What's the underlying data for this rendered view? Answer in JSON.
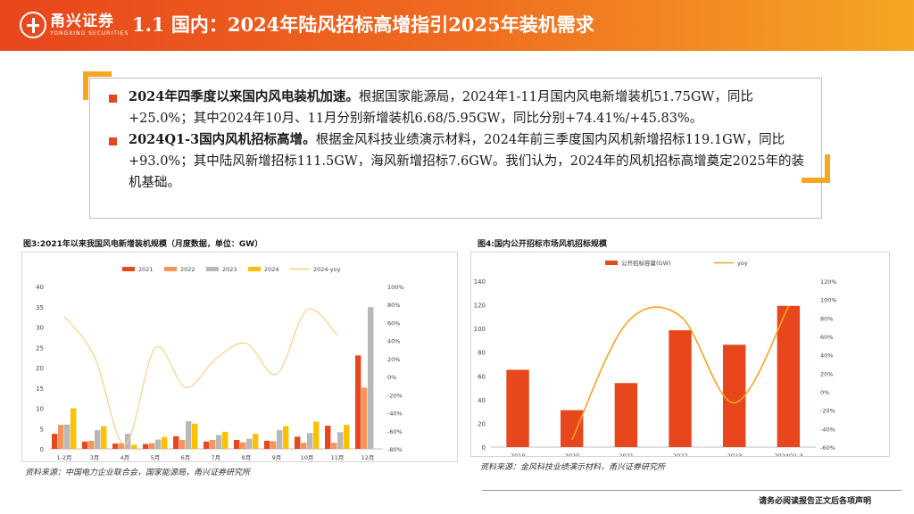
{
  "header": {
    "logo_cn": "甬兴证券",
    "logo_en": "YONGXING SECURITIES",
    "title": "1.1 国内：2024年陆风招标高增指引2025年装机需求"
  },
  "summary": {
    "bullets": [
      {
        "bold": "2024年四季度以来国内风电装机加速。",
        "text": "根据国家能源局，2024年1-11月国内风电新增装机51.75GW，同比+25.0%；其中2024年10月、11月分别新增装机6.68/5.95GW，同比分别+74.41%/+45.83%。"
      },
      {
        "bold": "2024Q1-3国内风机招标高增。",
        "text": "根据金风科技业绩演示材料，2024年前三季度国内风机新增招标119.1GW，同比+93.0%；其中陆风新增招标111.5GW，海风新增招标7.6GW。我们认为，2024年的风机招标高增奠定2025年的装机基础。"
      }
    ]
  },
  "figure3": {
    "title": "图3:2021年以来我国风电新增装机规模（月度数据，单位：GW）",
    "source": "资料来源：中国电力企业联合会，国家能源局，甬兴证券研究所"
  },
  "figure4": {
    "title": "图4:国内公开招标市场风机招标规模",
    "source": "资料来源：金风科技业绩演示材料，甬兴证券研究所"
  },
  "footer": "请务必阅读报告正文后各项声明",
  "chart_data": [
    {
      "type": "bar",
      "categories": [
        "1-2月",
        "3月",
        "4月",
        "5月",
        "6月",
        "7月",
        "8月",
        "9月",
        "10月",
        "11月",
        "12月"
      ],
      "series": [
        {
          "name": "2021",
          "color": "#e8461c",
          "values": [
            3.7,
            1.8,
            1.3,
            1.2,
            3.1,
            1.8,
            2.2,
            2.0,
            3.0,
            5.7,
            23.0
          ]
        },
        {
          "name": "2022",
          "color": "#f5955a",
          "values": [
            5.9,
            2.0,
            1.4,
            1.4,
            2.2,
            2.2,
            1.6,
            1.9,
            1.5,
            1.5,
            15.1
          ]
        },
        {
          "name": "2023",
          "color": "#b8b8b8",
          "values": [
            6.0,
            4.6,
            3.7,
            2.3,
            6.8,
            3.4,
            2.5,
            4.6,
            3.9,
            4.1,
            34.9
          ]
        },
        {
          "name": "2024",
          "color": "#ffc000",
          "values": [
            10.0,
            5.6,
            1.0,
            2.9,
            6.2,
            4.2,
            3.7,
            5.6,
            6.7,
            5.9,
            null
          ]
        }
      ],
      "line_series": {
        "name": "2024-yoy",
        "color": "#f7d08a",
        "values": [
          67,
          22,
          -75,
          32,
          -12,
          20,
          37,
          3,
          74,
          46,
          null
        ]
      },
      "y_left": {
        "min": 0,
        "max": 40,
        "ticks": [
          0,
          5,
          10,
          15,
          20,
          25,
          30,
          35,
          40
        ]
      },
      "y_right": {
        "min": -80,
        "max": 100,
        "ticks": [
          "-80%",
          "-60%",
          "-40%",
          "-20%",
          "0%",
          "20%",
          "40%",
          "60%",
          "80%",
          "100%"
        ]
      },
      "legend_position": "top"
    },
    {
      "type": "bar",
      "categories": [
        "2019",
        "2020",
        "2021",
        "2022",
        "2023",
        "2024Q1-3"
      ],
      "series": [
        {
          "name": "公开招标容量(GW)",
          "color": "#e8461c",
          "values": [
            65.2,
            31.1,
            54.0,
            98.5,
            86.3,
            119.1
          ]
        }
      ],
      "line_series": {
        "name": "yoy",
        "color": "#f5a623",
        "values": [
          null,
          -52,
          74,
          82,
          -12,
          93
        ]
      },
      "y_left": {
        "min": 0,
        "max": 140,
        "ticks": [
          0,
          20,
          40,
          60,
          80,
          100,
          120,
          140
        ]
      },
      "y_right": {
        "min": -60,
        "max": 120,
        "ticks": [
          "-60%",
          "-40%",
          "-20%",
          "0%",
          "20%",
          "40%",
          "60%",
          "80%",
          "100%",
          "120%"
        ]
      },
      "legend_position": "top"
    }
  ]
}
